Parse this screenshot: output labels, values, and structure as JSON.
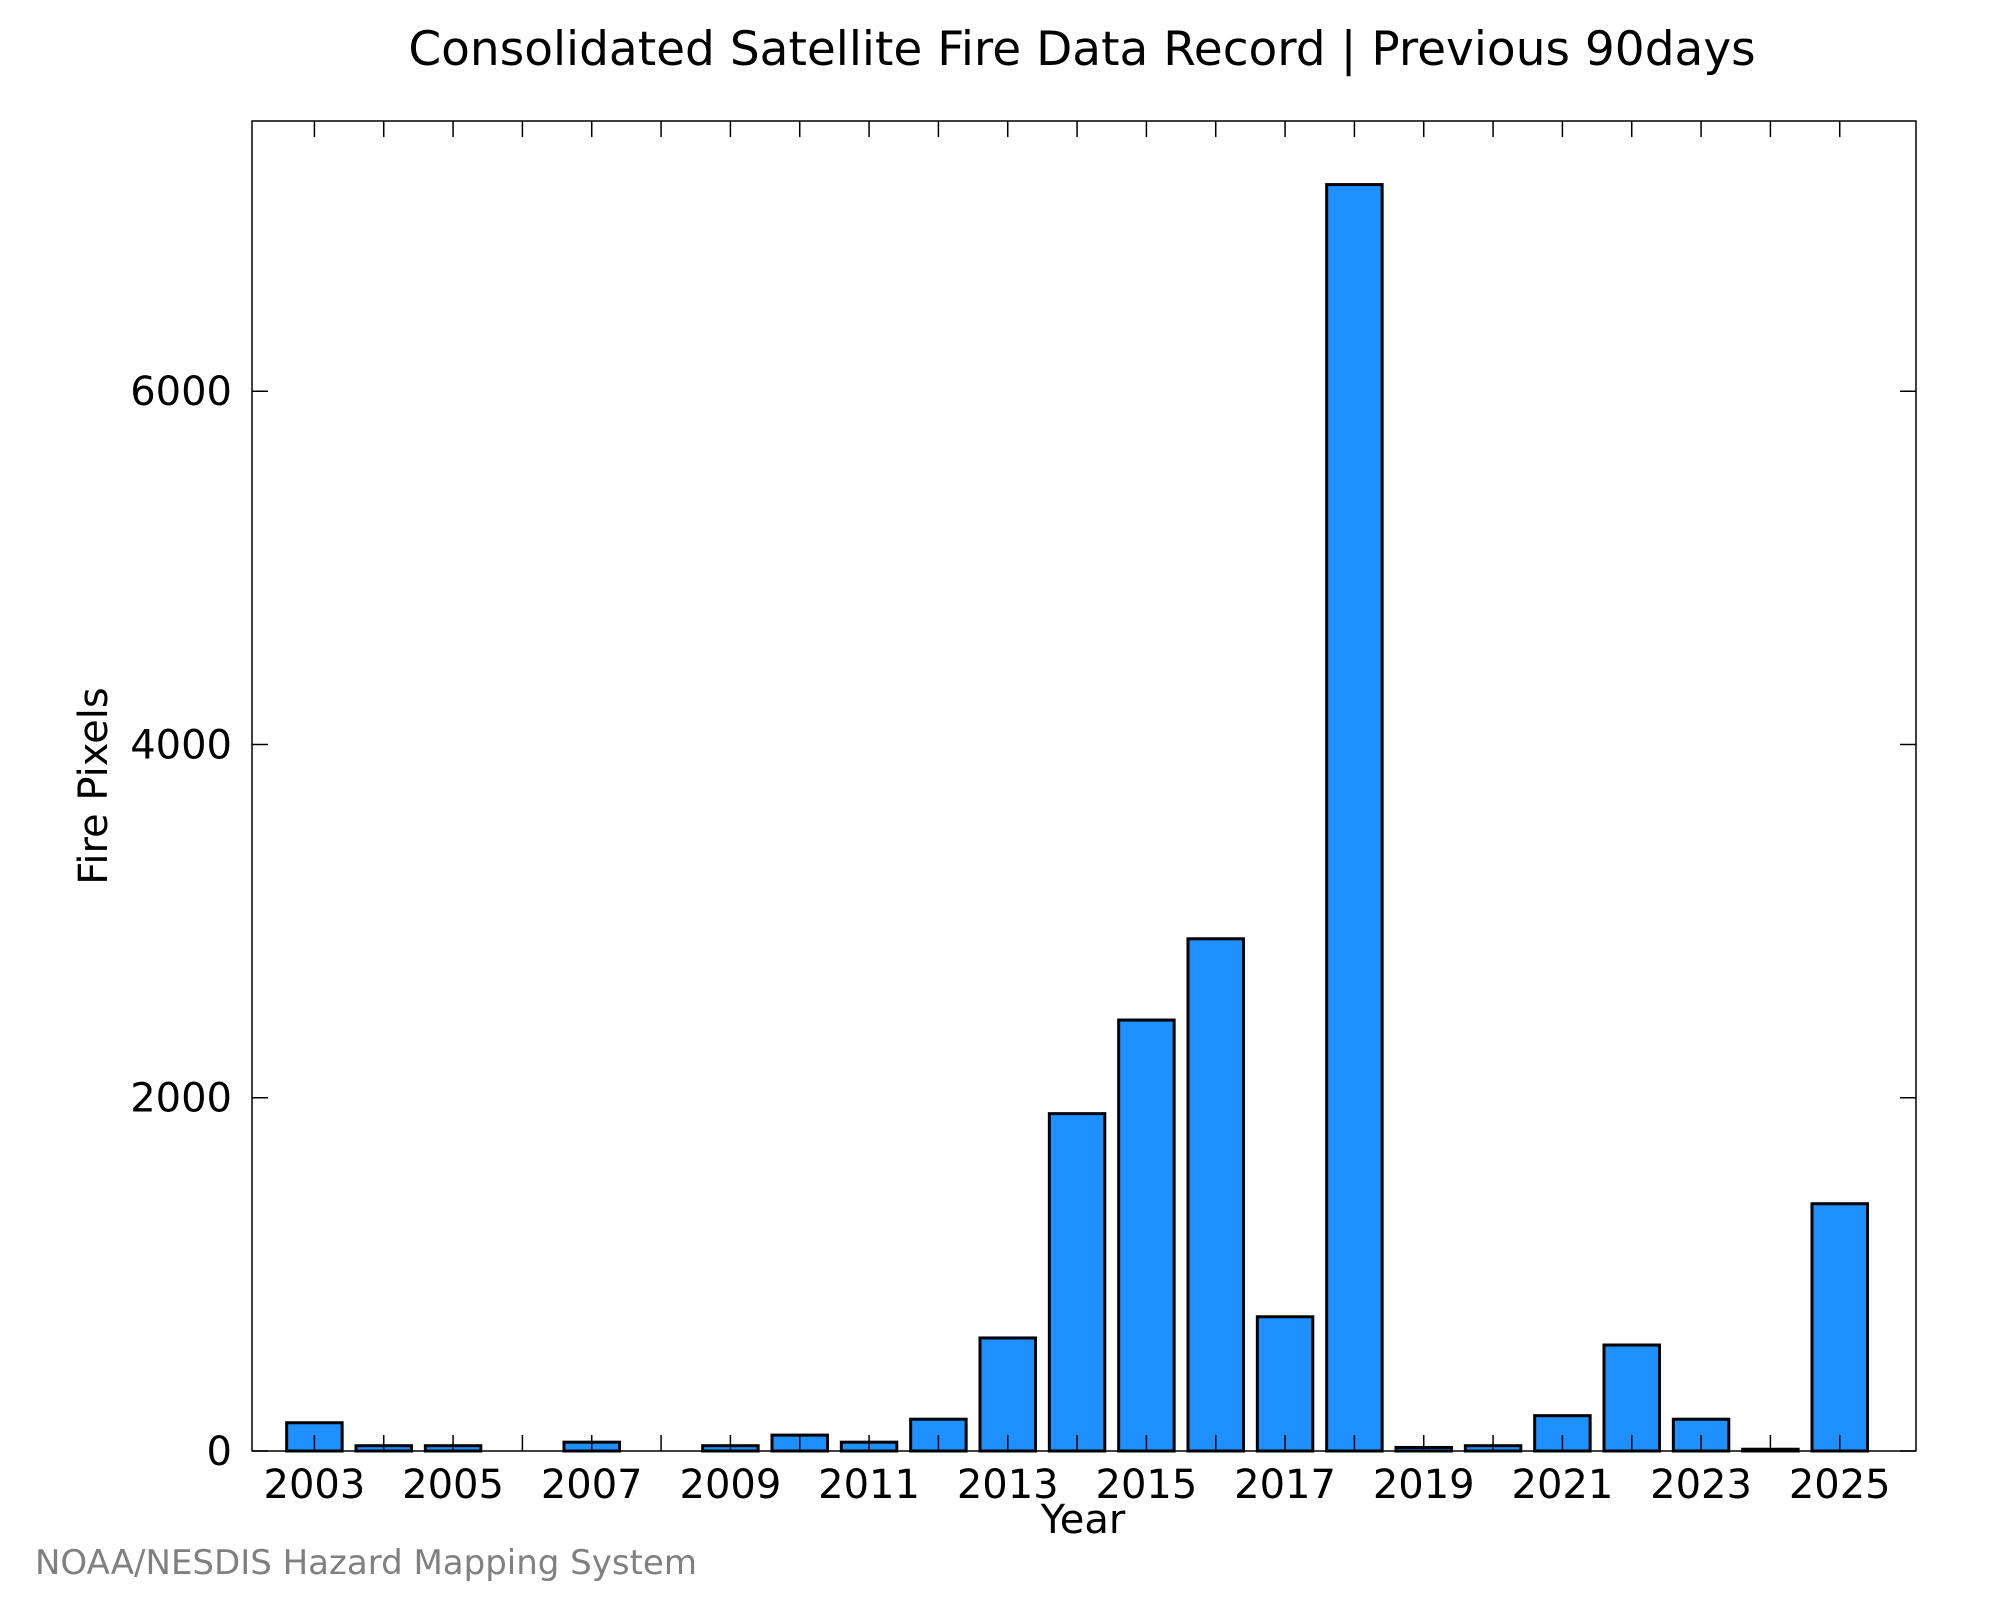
{
  "chart_data": {
    "type": "bar",
    "title": "Consolidated Satellite Fire Data Record | Previous 90days",
    "xlabel": "Year",
    "ylabel": "Fire Pixels",
    "categories": [
      "2003",
      "2004",
      "2005",
      "2006",
      "2007",
      "2008",
      "2009",
      "2010",
      "2011",
      "2012",
      "2013",
      "2014",
      "2015",
      "2016",
      "2017",
      "2018",
      "2019",
      "2020",
      "2021",
      "2022",
      "2023",
      "2024",
      "2025"
    ],
    "values": [
      160,
      30,
      30,
      0,
      50,
      0,
      30,
      90,
      50,
      180,
      640,
      1910,
      2440,
      2900,
      760,
      7170,
      20,
      30,
      200,
      600,
      180,
      10,
      1400
    ],
    "x_tick_labels": [
      "2003",
      "2005",
      "2007",
      "2009",
      "2011",
      "2013",
      "2015",
      "2017",
      "2019",
      "2021",
      "2023",
      "2025"
    ],
    "y_tick_labels": [
      "0",
      "2000",
      "4000",
      "6000"
    ],
    "y_ticks": [
      0,
      2000,
      4000,
      6000
    ],
    "ylim": [
      0,
      7530
    ],
    "xlim": [
      2002.1,
      2026.1
    ],
    "grid": false,
    "bar_color": "#1E90FF",
    "bar_edge_color": "#000000"
  },
  "credit": "NOAA/NESDIS Hazard Mapping System"
}
